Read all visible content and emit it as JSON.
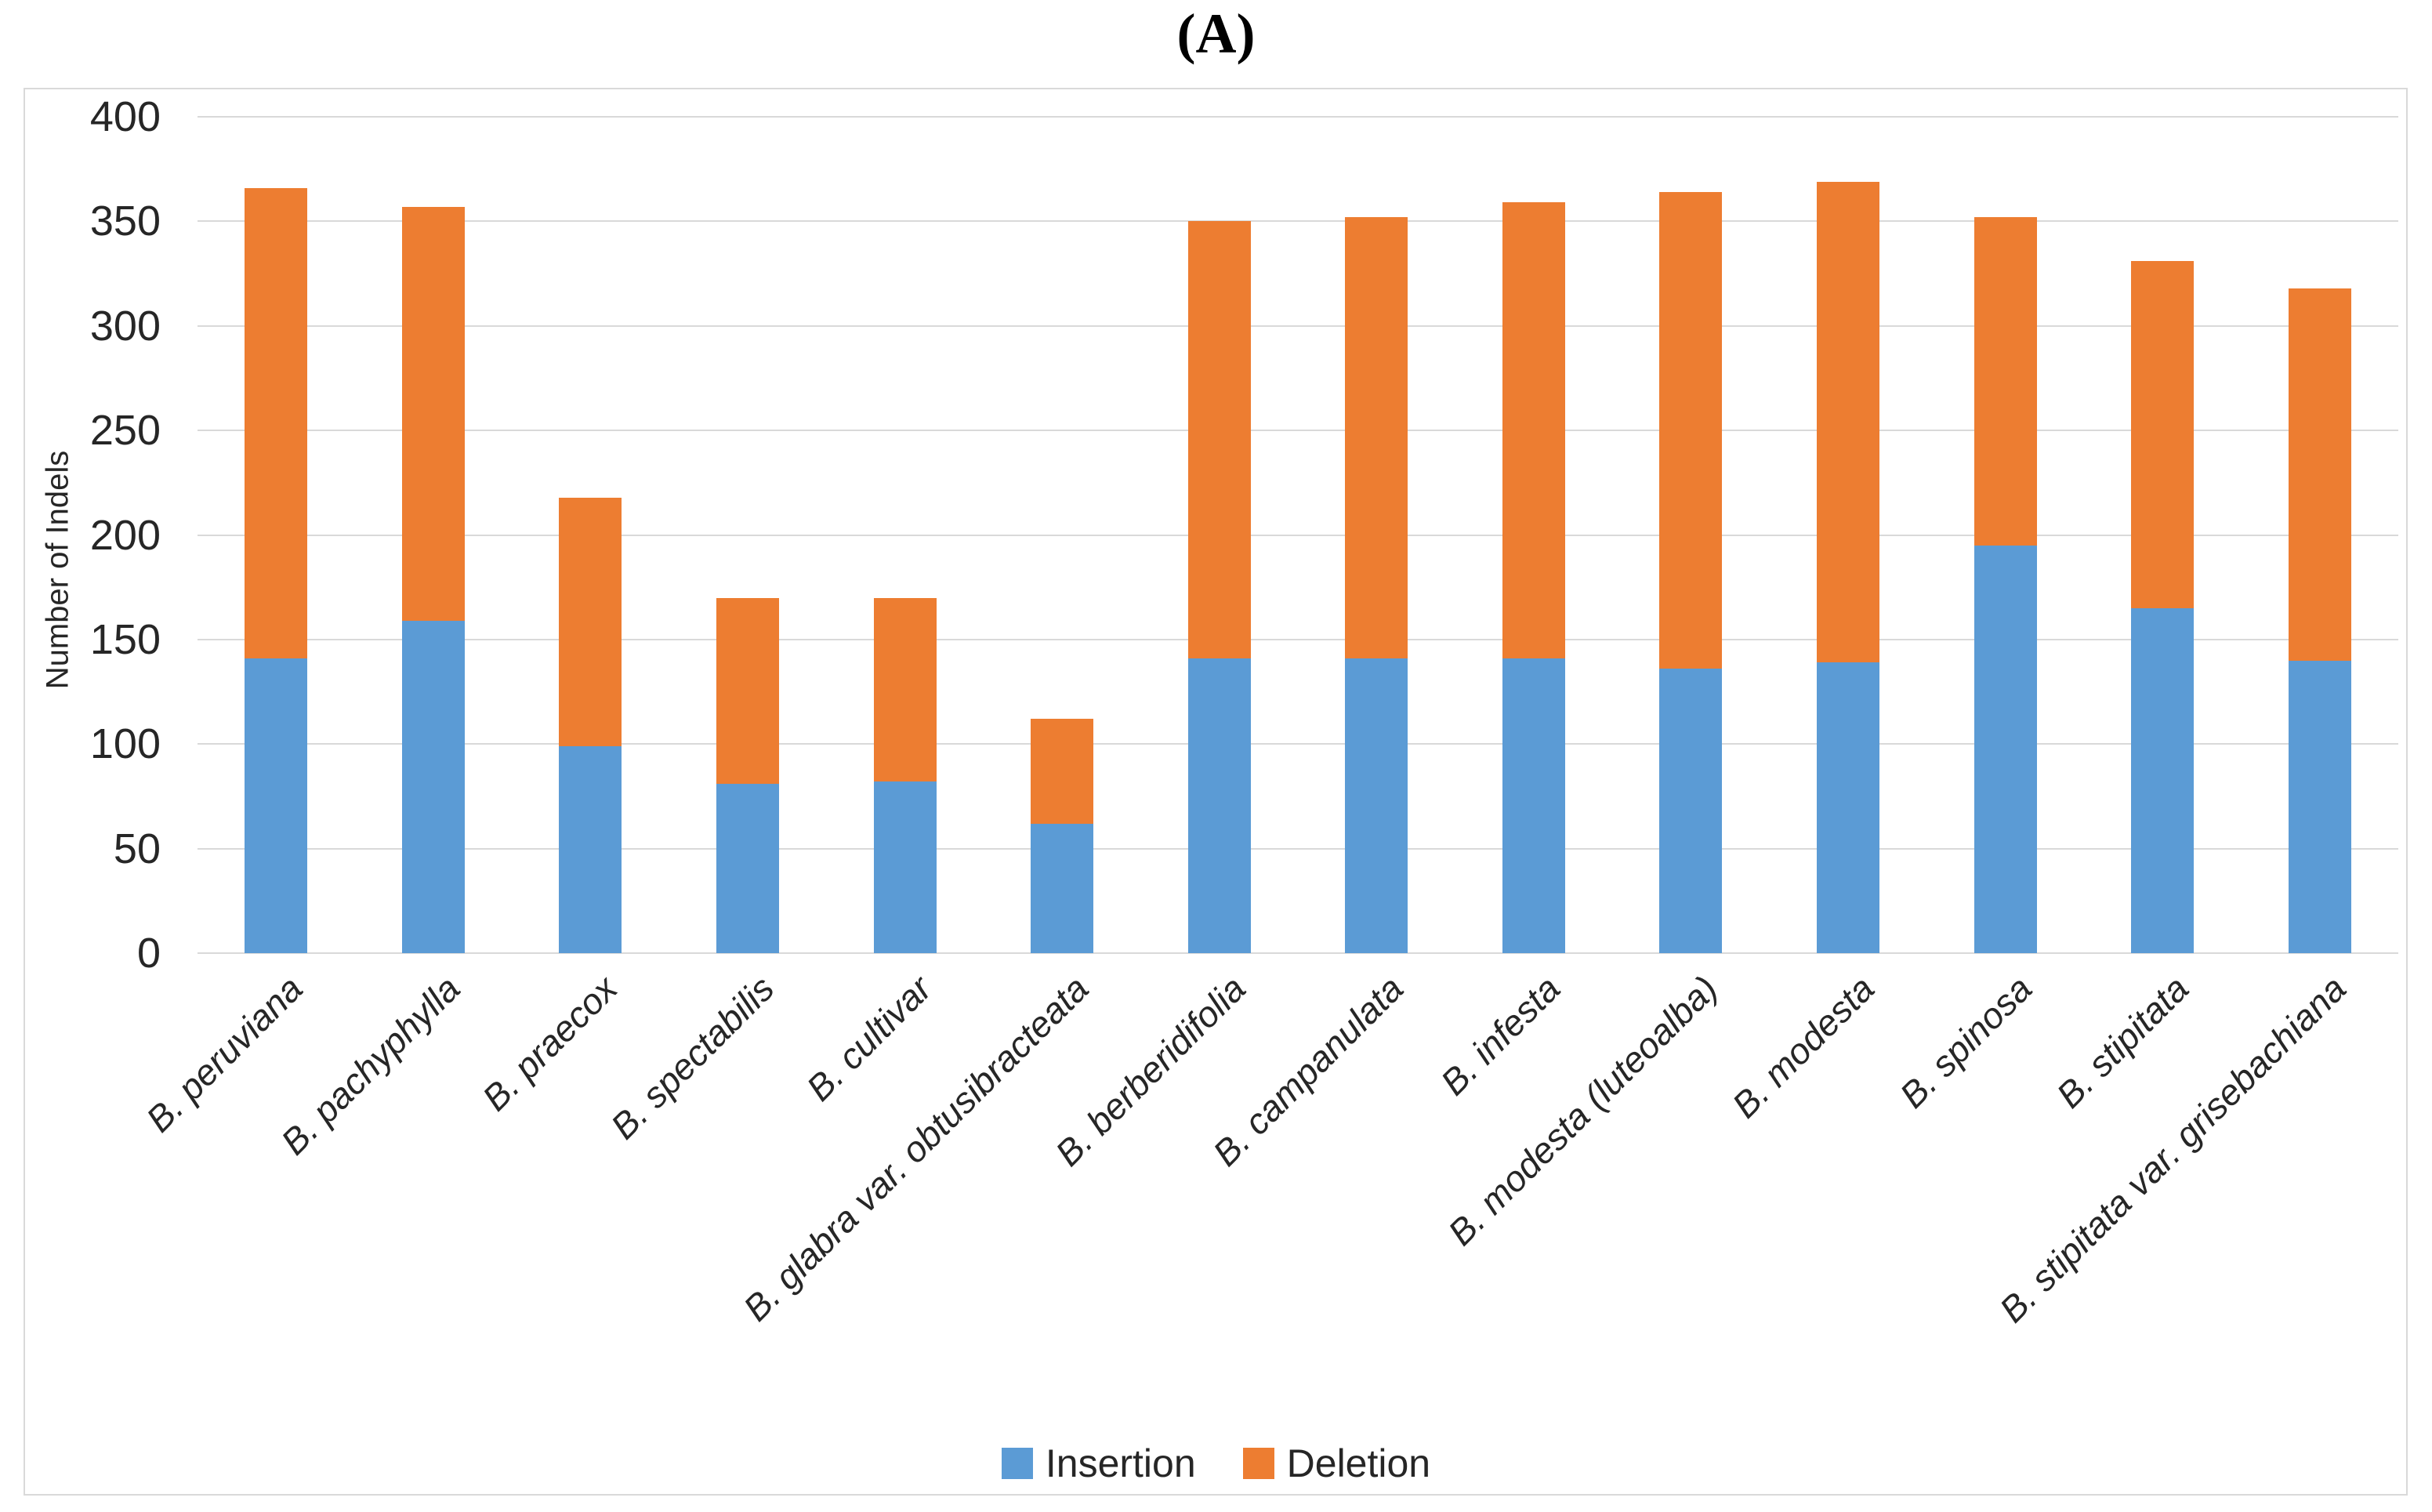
{
  "title": "(A)",
  "y_axis": {
    "label": "Number of Indels"
  },
  "chart_data": {
    "type": "bar",
    "stacked": true,
    "title": "(A)",
    "xlabel": "",
    "ylabel": "Number of Indels",
    "ylim": [
      0,
      400
    ],
    "y_tick_step": 50,
    "grid": true,
    "legend_position": "bottom",
    "categories": [
      "B. peruviana",
      "B. pachyphylla",
      "B. praecox",
      "B. spectabilis",
      "B. cultivar",
      "B. glabra var. obtusibracteata",
      "B. berberidifolia",
      "B. campanulata",
      "B. infesta",
      "B. modesta (luteoalba)",
      "B. modesta",
      "B. spinosa",
      "B. stipitata",
      "B. stipitata var. grisebachiana"
    ],
    "series": [
      {
        "name": "Insertion",
        "color": "#5B9BD5",
        "values": [
          141,
          159,
          99,
          81,
          82,
          62,
          141,
          141,
          141,
          136,
          139,
          195,
          165,
          140
        ]
      },
      {
        "name": "Deletion",
        "color": "#ED7D31",
        "values": [
          225,
          198,
          119,
          89,
          88,
          50,
          209,
          211,
          218,
          228,
          230,
          157,
          166,
          178
        ]
      }
    ],
    "totals": [
      366,
      357,
      218,
      170,
      170,
      112,
      350,
      352,
      359,
      364,
      369,
      352,
      331,
      318
    ],
    "colors": {
      "insertion": "#5B9BD5",
      "deletion": "#ED7D31",
      "gridline": "#D9D9D9",
      "text": "#262626"
    }
  }
}
